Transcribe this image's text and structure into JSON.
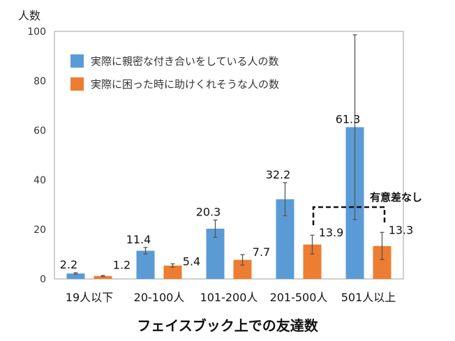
{
  "chart_data": {
    "type": "bar",
    "title": "",
    "xlabel": "フェイスブック上での友達数",
    "ylabel": "人数",
    "ylim": [
      0,
      100
    ],
    "yticks": [
      0,
      20,
      40,
      60,
      80,
      100
    ],
    "grid": false,
    "legend_position": "top-left",
    "categories": [
      "19人以下",
      "20-100人",
      "101-200人",
      "201-500人",
      "501人以上"
    ],
    "series": [
      {
        "name": "実際に親密な付き合いをしている人の数",
        "color": "#5b9bd5",
        "values": [
          2.2,
          11.4,
          20.3,
          32.2,
          61.3
        ],
        "labels": [
          "2.2",
          "11.4",
          "20.3",
          "32.2",
          "61.3"
        ],
        "error": [
          0.3,
          1.3,
          3.5,
          6.7,
          37.3
        ]
      },
      {
        "name": "実際に困った時に助けくれそうな人の数",
        "color": "#ed7d31",
        "values": [
          1.2,
          5.4,
          7.7,
          13.9,
          13.3
        ],
        "labels": [
          "1.2",
          "5.4",
          "7.7",
          "13.9",
          "13.3"
        ],
        "error": [
          0.2,
          0.7,
          2.1,
          3.8,
          5.5
        ]
      }
    ],
    "annotations": [
      {
        "text": "有意差なし",
        "between": [
          "201-500人",
          "501人以上"
        ],
        "style": "dashed-bracket"
      }
    ]
  }
}
